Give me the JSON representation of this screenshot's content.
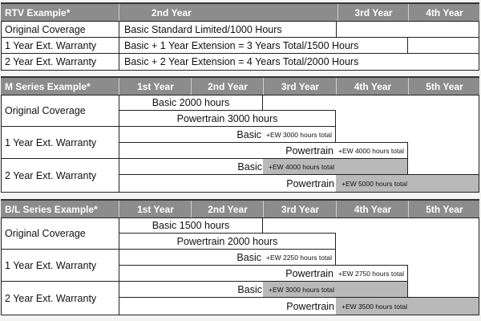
{
  "rtv": {
    "title": "RTV Example*",
    "years": [
      "2nd Year",
      "3rd Year",
      "4th Year"
    ],
    "rows": [
      {
        "label": "Original Coverage",
        "text": "Basic Standard Limited/1000 Hours"
      },
      {
        "label": "1 Year Ext. Warranty",
        "text": "Basic + 1 Year Extension = 3 Years Total/1500 Hours"
      },
      {
        "label": "2 Year Ext. Warranty",
        "text": "Basic + 2 Year Extension = 4 Years Total/2000 Hours"
      }
    ]
  },
  "m": {
    "title": "M Series Example*",
    "years": [
      "1st Year",
      "2nd Year",
      "3rd Year",
      "4th Year",
      "5th Year"
    ],
    "original": {
      "label": "Original Coverage",
      "basic": "Basic 2000 hours",
      "powertrain": "Powertrain 3000 hours"
    },
    "ext1": {
      "label": "1 Year Ext. Warranty",
      "basic": "Basic",
      "basic_ew": "+EW 3000 hours total",
      "powertrain": "Powertrain",
      "powertrain_ew": "+EW 4000 hours total"
    },
    "ext2": {
      "label": "2 Year Ext. Warranty",
      "basic": "Basic",
      "basic_ew": "+EW 4000 hours total",
      "powertrain": "Powertrain",
      "powertrain_ew": "+EW 5000 hours total"
    }
  },
  "bl": {
    "title": "B/L Series Example*",
    "years": [
      "1st Year",
      "2nd Year",
      "3rd Year",
      "4th Year",
      "5th Year"
    ],
    "original": {
      "label": "Original Coverage",
      "basic": "Basic 1500 hours",
      "powertrain": "Powertrain 2000 hours"
    },
    "ext1": {
      "label": "1 Year Ext. Warranty",
      "basic": "Basic",
      "basic_ew": "+EW 2250 hours total",
      "powertrain": "Powertrain",
      "powertrain_ew": "+EW 2750 hours total"
    },
    "ext2": {
      "label": "2 Year Ext. Warranty",
      "basic": "Basic",
      "basic_ew": "+EW 3000 hours total",
      "powertrain": "Powertrain",
      "powertrain_ew": "+EW 3500 hours total"
    }
  }
}
